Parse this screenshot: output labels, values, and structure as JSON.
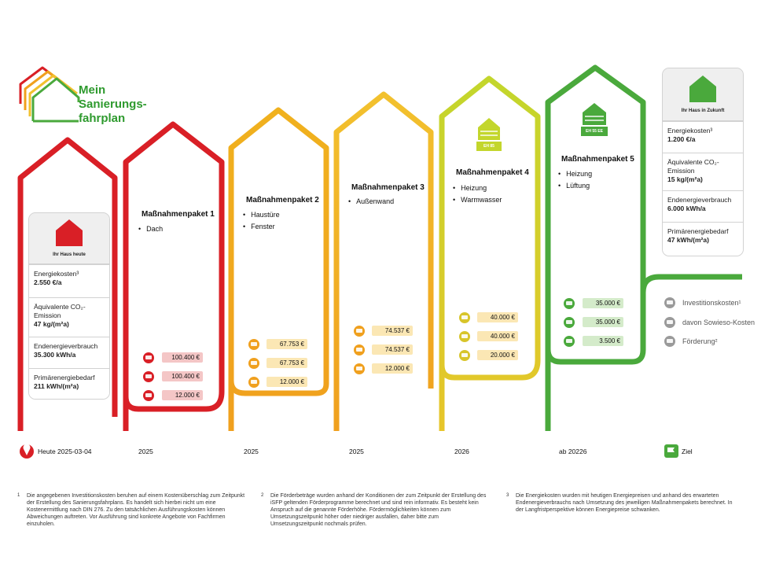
{
  "logo": {
    "line1": "Mein",
    "line2": "Sanierungs-",
    "line3": "fahrplan"
  },
  "colors": {
    "red": "#d91f26",
    "orange": "#f0a01e",
    "yellow": "#f2c12e",
    "lime": "#c3d62c",
    "green": "#4aa93c",
    "cost_red": "#f4c6c6",
    "cost_yellow": "#fbe7b4",
    "cost_green": "#d4ebca"
  },
  "today_card": {
    "caption": "Ihr Haus heute",
    "rows": [
      {
        "label": "Energiekosten³",
        "value": "2.550 €/a"
      },
      {
        "label": "Äquivalente CO₂-Emission",
        "value": "47 kg/(m²a)"
      },
      {
        "label": "Endenergieverbrauch",
        "value": "35.300 kWh/a"
      },
      {
        "label": "Primärenergiebedarf",
        "value": "211 kWh/(m²a)"
      }
    ]
  },
  "future_card": {
    "caption": "Ihr Haus in Zukunft",
    "rows": [
      {
        "label": "Energiekosten³",
        "value": "1.200 €/a"
      },
      {
        "label": "Äquivalente CO₂-Emission",
        "value": "15 kg/(m²a)"
      },
      {
        "label": "Endenergieverbrauch",
        "value": "6.000 kWh/a"
      },
      {
        "label": "Primärenergiebedarf",
        "value": "47 kWh/(m²a)"
      }
    ]
  },
  "packages": [
    {
      "title": "Maßnahmenpaket 1",
      "items": [
        "Dach"
      ],
      "costs": [
        "100.400 €",
        "100.400 €",
        "12.000 €"
      ],
      "year": "2025"
    },
    {
      "title": "Maßnahmenpaket 2",
      "items": [
        "Haustüre",
        "Fenster"
      ],
      "costs": [
        "67.753 €",
        "67.753 €",
        "12.000 €"
      ],
      "year": "2025"
    },
    {
      "title": "Maßnahmenpaket 3",
      "items": [
        "Außenwand"
      ],
      "costs": [
        "74.537 €",
        "74.537 €",
        "12.000 €"
      ],
      "year": "2025"
    },
    {
      "title": "Maßnahmenpaket 4",
      "items": [
        "Heizung",
        "Warmwasser"
      ],
      "costs": [
        "40.000 €",
        "40.000 €",
        "20.000 €"
      ],
      "year": "2026",
      "badge": "EH 85"
    },
    {
      "title": "Maßnahmenpaket 5",
      "items": [
        "Heizung",
        "Lüftung"
      ],
      "costs": [
        "35.000 €",
        "35.000 €",
        "3.500 €"
      ],
      "year": "ab 20226",
      "badge": "EH 55 EE"
    }
  ],
  "timeline": {
    "today": "Heute 2025-03-04",
    "goal": "Ziel"
  },
  "legend": [
    "Investitionskosten¹",
    "davon Sowieso-Kosten",
    "Förderung²"
  ],
  "footnotes": [
    {
      "num": "1",
      "text": "Die angegebenen Investitionskosten beruhen auf einem Kostenüberschlag zum Zeitpunkt der Erstellung des Sanierungsfahrplans. Es handelt sich hierbei nicht um eine Kostenermittlung nach DIN 276. Zu den tatsächlichen Ausführungskosten können Abweichungen auftreten. Vor Ausführung sind konkrete Angebote von Fachfirmen einzuholen."
    },
    {
      "num": "2",
      "text": "Die Förderbeträge wurden anhand der Konditionen der zum Zeitpunkt der Erstellung des iSFP geltenden Förderprogramme berechnet und sind rein informativ. Es besteht kein Anspruch auf die genannte Förderhöhe. Fördermöglichkeiten können zum Umsetzungszeitpunkt höher oder niedriger ausfallen, daher bitte zum Umsetzungszeitpunkt nochmals prüfen."
    },
    {
      "num": "3",
      "text": "Die Energiekosten wurden mit heutigen Energiepreisen und anhand des erwarteten Endenergieverbrauchs nach Umsetzung des jeweiligen Maßnahmenpakets berechnet. In der Langfristperspektive können Energiepreise schwanken."
    }
  ]
}
